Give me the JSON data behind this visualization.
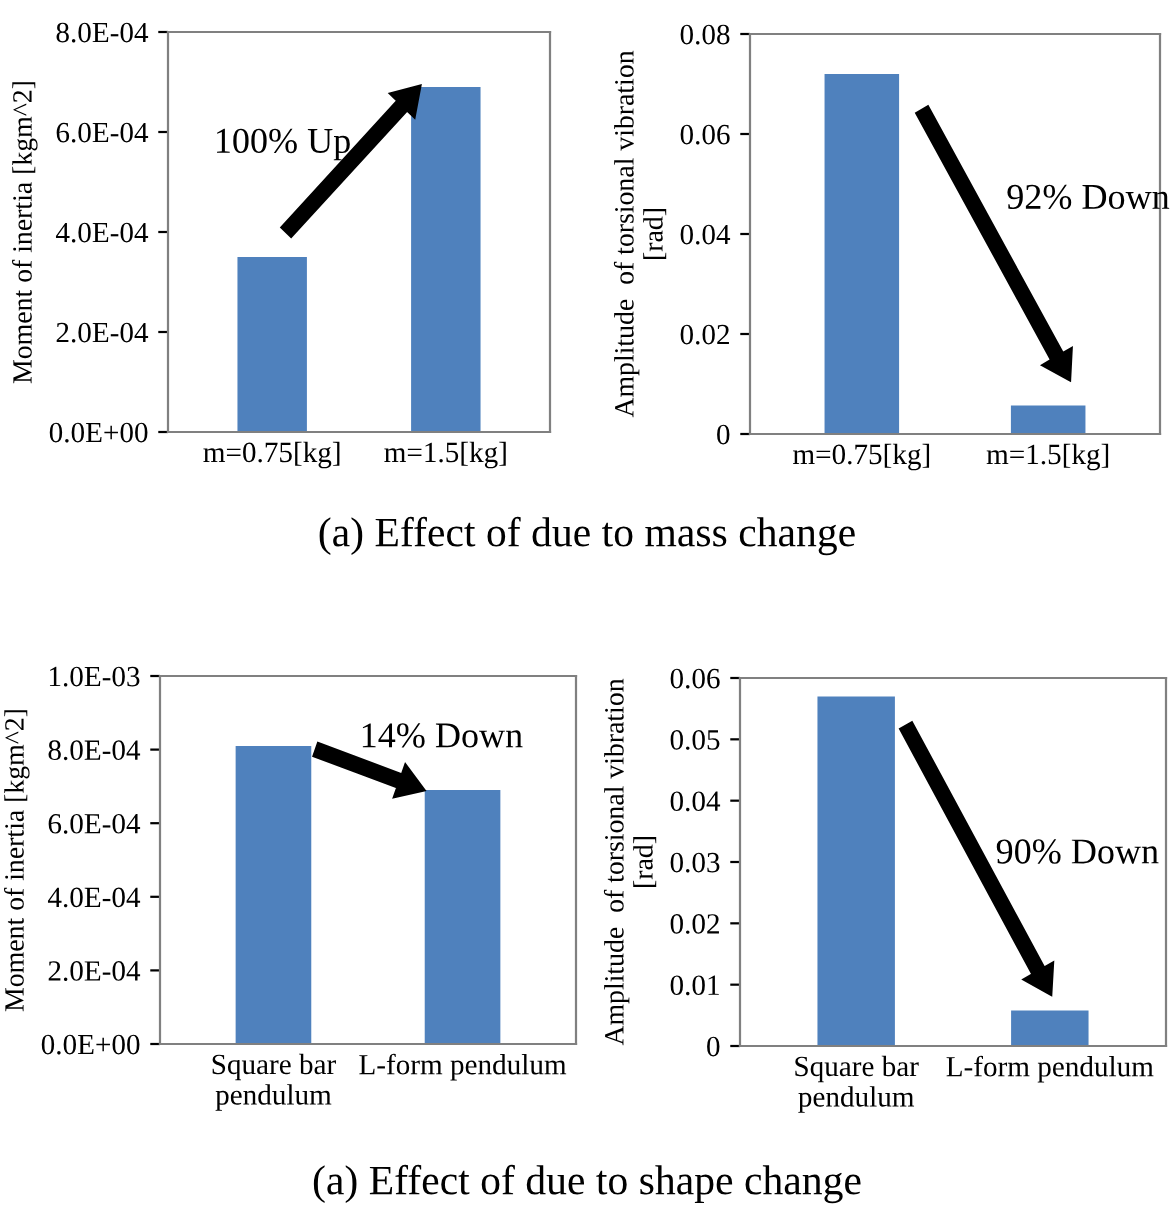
{
  "chart_data": [
    {
      "type": "bar",
      "categories": [
        "m=0.75[kg]",
        "m=1.5[kg]"
      ],
      "values": [
        0.00035,
        0.00069
      ],
      "color": "#4f81bd",
      "ylabel": "Moment of inertia [kgm^2]",
      "ylim": [
        0,
        0.0008
      ],
      "yticks": [
        {
          "value": 0,
          "label": "0.0E+00"
        },
        {
          "value": 0.0002,
          "label": "2.0E-04"
        },
        {
          "value": 0.0004,
          "label": "4.0E-04"
        },
        {
          "value": 0.0006,
          "label": "6.0E-04"
        },
        {
          "value": 0.0008,
          "label": "8.0E-04"
        }
      ],
      "grid": false,
      "legend": false,
      "annotations": [
        "100% Up",
        "(a) Effect of due to mass change"
      ]
    },
    {
      "type": "bar",
      "categories": [
        "m=0.75[kg]",
        "m=1.5[kg]"
      ],
      "values": [
        0.072,
        0.0057
      ],
      "color": "#4f81bd",
      "ylabel": "Amplitude  of torsional vibration\n[rad]",
      "ylim": [
        0,
        0.08
      ],
      "yticks": [
        0,
        {
          "value": 0.02,
          "label": "0.02"
        },
        {
          "value": 0.04,
          "label": "0.04"
        },
        {
          "value": 0.06,
          "label": "0.06"
        },
        {
          "value": 0.08,
          "label": "0.08"
        }
      ],
      "grid": false,
      "legend": false,
      "annotations": [
        "92% Down"
      ]
    },
    {
      "type": "bar",
      "categories": [
        "Square bar\npendulum",
        "L-form pendulum"
      ],
      "values": [
        0.00081,
        0.00069
      ],
      "color": "#4f81bd",
      "ylabel": "Moment of inertia [kgm^2]",
      "ylim": [
        0,
        0.001
      ],
      "yticks": [
        {
          "value": 0,
          "label": "0.0E+00"
        },
        {
          "value": 0.0002,
          "label": "2.0E-04"
        },
        {
          "value": 0.0004,
          "label": "4.0E-04"
        },
        {
          "value": 0.0006,
          "label": "6.0E-04"
        },
        {
          "value": 0.0008,
          "label": "8.0E-04"
        },
        {
          "value": 0.001,
          "label": "1.0E-03"
        }
      ],
      "grid": false,
      "legend": false,
      "annotations": [
        "14% Down",
        "(a) Effect of due to shape change"
      ]
    },
    {
      "type": "bar",
      "categories": [
        "Square bar\npendulum",
        "L-form pendulum"
      ],
      "values": [
        0.057,
        0.0058
      ],
      "color": "#4f81bd",
      "ylabel": "Amplitude  of torsional vibration\n[rad]",
      "ylim": [
        0,
        0.06
      ],
      "yticks": [
        0,
        {
          "value": 0.01,
          "label": "0.01"
        },
        {
          "value": 0.02,
          "label": "0.02"
        },
        {
          "value": 0.03,
          "label": "0.03"
        },
        {
          "value": 0.04,
          "label": "0.04"
        },
        {
          "value": 0.05,
          "label": "0.05"
        },
        {
          "value": 0.06,
          "label": "0.06"
        }
      ],
      "grid": false,
      "legend": false,
      "annotations": [
        "90% Down"
      ]
    }
  ]
}
